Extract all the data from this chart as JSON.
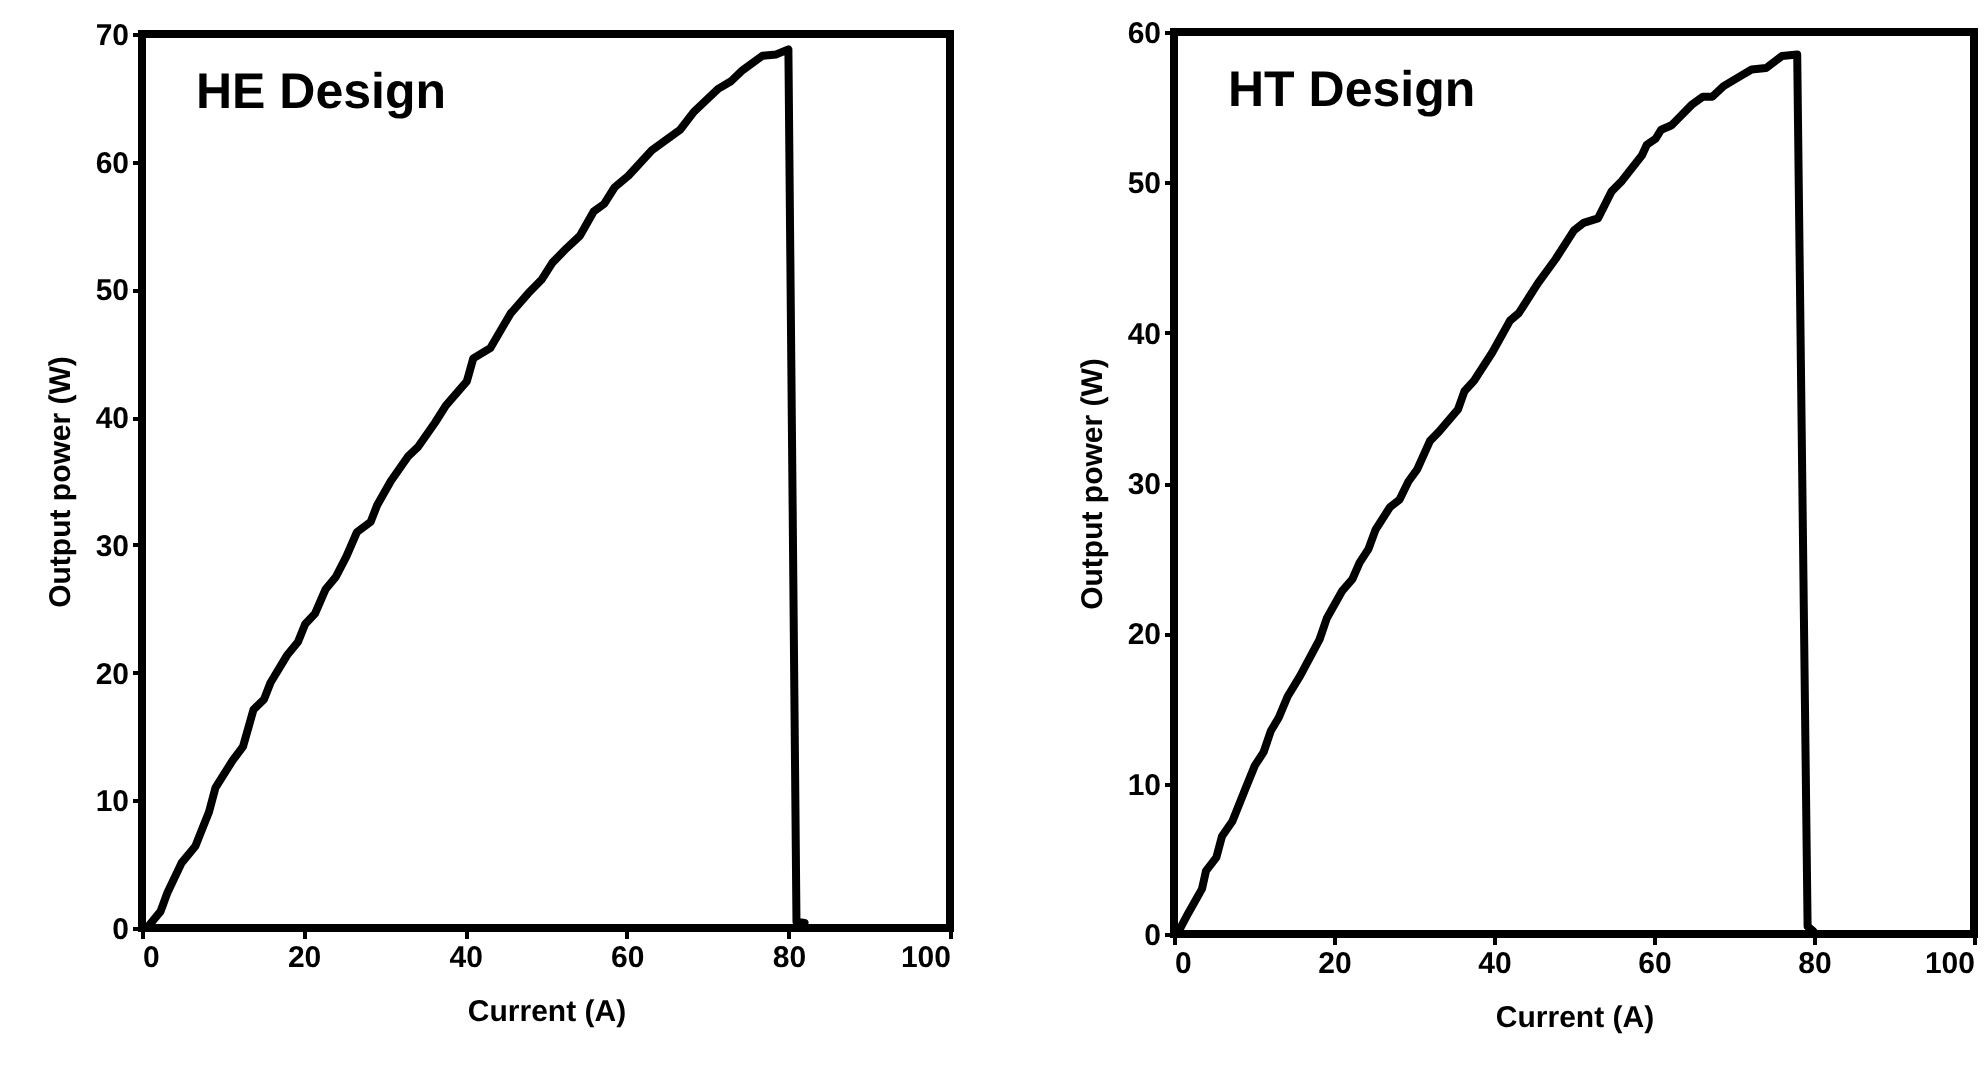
{
  "chart_data": [
    {
      "type": "line",
      "title": "HE Design",
      "xlabel": "Current (A)",
      "ylabel": "Output power (W)",
      "xlim": [
        0,
        100
      ],
      "xticks": [
        0,
        20,
        40,
        60,
        80,
        100
      ],
      "ylim": [
        0,
        70
      ],
      "yticks": [
        0,
        10,
        20,
        30,
        40,
        50,
        60,
        70
      ],
      "grid": false,
      "marker": "none",
      "line_style": "solid",
      "x": [
        0.6,
        2.3,
        3.1,
        4.9,
        6.6,
        8.3,
        9.1,
        11.2,
        12.5,
        13.8,
        15.1,
        15.9,
        18.0,
        19.3,
        20.2,
        21.4,
        22.7,
        24.0,
        25.3,
        26.6,
        28.3,
        29.1,
        30.8,
        32.9,
        34.2,
        36.3,
        37.6,
        40.2,
        41.0,
        43.1,
        45.6,
        47.8,
        49.5,
        50.8,
        52.5,
        54.2,
        55.9,
        57.2,
        58.5,
        60.2,
        63.1,
        66.6,
        68.3,
        71.3,
        72.9,
        74.2,
        76.8,
        78.5,
        80.0,
        81.0,
        82.0
      ],
      "series": [
        {
          "color": "#000000",
          "values": [
            0,
            1.3,
            2.7,
            5.1,
            6.4,
            9.1,
            11.0,
            13.1,
            14.2,
            17.1,
            17.9,
            19.2,
            21.4,
            22.4,
            23.8,
            24.6,
            26.5,
            27.5,
            29.1,
            31.0,
            31.8,
            33.1,
            35.0,
            36.9,
            37.7,
            39.6,
            40.9,
            42.8,
            44.6,
            45.4,
            48.1,
            49.7,
            50.8,
            52.1,
            53.2,
            54.2,
            56.1,
            56.7,
            58.0,
            58.9,
            60.9,
            62.5,
            63.9,
            65.7,
            66.3,
            67.1,
            68.3,
            68.4,
            68.8,
            0.5,
            0.4
          ]
        }
      ]
    },
    {
      "type": "line",
      "title": "HT Design",
      "xlabel": "Current (A)",
      "ylabel": "Output power (W)",
      "xlim": [
        0,
        100
      ],
      "xticks": [
        0,
        20,
        40,
        60,
        80,
        100
      ],
      "ylim": [
        0,
        60
      ],
      "yticks": [
        0,
        10,
        20,
        30,
        40,
        50,
        60
      ],
      "grid": false,
      "marker": "none",
      "line_style": "solid",
      "x": [
        0.4,
        1.8,
        3.5,
        4.0,
        5.3,
        6.0,
        7.3,
        8.8,
        10.1,
        11.2,
        12.1,
        13.1,
        14.2,
        15.8,
        18.2,
        19.1,
        21.0,
        22.3,
        23.2,
        24.3,
        25.2,
        27.0,
        28.2,
        29.3,
        30.4,
        32.0,
        33.1,
        35.5,
        36.3,
        37.5,
        39.8,
        42.0,
        43.1,
        45.5,
        47.7,
        50.0,
        51.2,
        53.0,
        54.7,
        56.0,
        58.5,
        59.1,
        60.2,
        60.9,
        62.2,
        64.8,
        66.1,
        67.3,
        68.7,
        70.9,
        72.2,
        74.0,
        76.0,
        77.9,
        79.2,
        79.9
      ],
      "series": [
        {
          "color": "#000000",
          "values": [
            0,
            1.4,
            3.0,
            4.2,
            5.1,
            6.5,
            7.5,
            9.5,
            11.2,
            12.1,
            13.5,
            14.4,
            15.8,
            17.2,
            19.6,
            21.0,
            22.8,
            23.6,
            24.7,
            25.6,
            26.9,
            28.4,
            28.9,
            30.1,
            30.9,
            32.8,
            33.4,
            34.9,
            36.1,
            36.8,
            38.7,
            40.8,
            41.3,
            43.3,
            44.9,
            46.8,
            47.3,
            47.6,
            49.4,
            50.1,
            51.8,
            52.5,
            52.9,
            53.5,
            53.8,
            55.2,
            55.7,
            55.7,
            56.4,
            57.1,
            57.5,
            57.6,
            58.4,
            58.5,
            0.5,
            0.2
          ]
        }
      ]
    }
  ]
}
